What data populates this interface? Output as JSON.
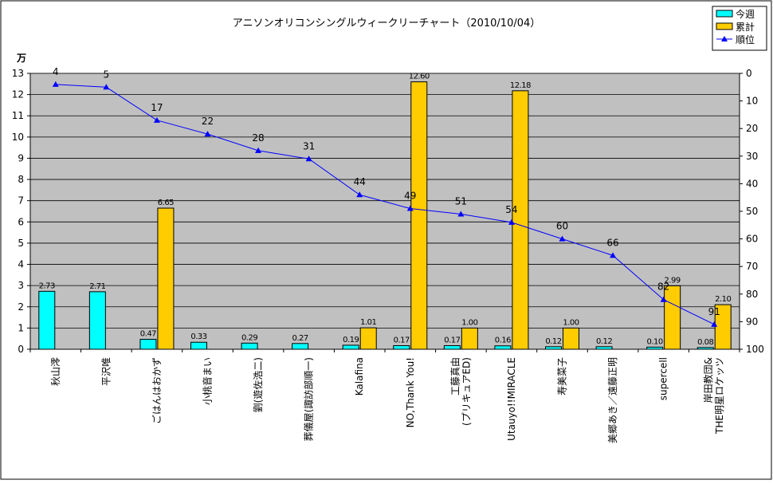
{
  "chart_data": {
    "type": "bar",
    "title": "アニソンオリコンシングルウィークリーチャート（2010/10/04）",
    "y_unit_label": "万",
    "categories": [
      "秋山澪",
      "平沢唯",
      "ごはんはおかず",
      "小桃音まい",
      "劉(遊佐浩二)",
      "葬儀屋(諏訪部順一)",
      "Kalafina",
      "NO,Thank You!",
      "工藤真由(プリキュアED)",
      "Utauyo!!MIRACLE",
      "寿美菜子",
      "美郷あき／遠藤正明",
      "supercell",
      "岸田教団&THE明星ロケッツ"
    ],
    "category_labels": [
      [
        "秋山澪"
      ],
      [
        "平沢唯"
      ],
      [
        "ごはんはおかず"
      ],
      [
        "小桃音まい"
      ],
      [
        "劉(遊佐浩二)"
      ],
      [
        "葬儀屋(諏訪部順一)"
      ],
      [
        "Kalafina"
      ],
      [
        "NO,Thank You!"
      ],
      [
        "工藤真由",
        "(プリキュアED)"
      ],
      [
        "Utauyo!!MIRACLE"
      ],
      [
        "寿美菜子"
      ],
      [
        "美郷あき／遠藤正明"
      ],
      [
        "supercell"
      ],
      [
        "岸田教団&",
        "THE明星ロケッツ"
      ]
    ],
    "series": [
      {
        "name": "今週",
        "type": "bar",
        "axis": "left",
        "color": "#00FFFF",
        "values": [
          2.73,
          2.71,
          0.47,
          0.33,
          0.29,
          0.27,
          0.19,
          0.17,
          0.17,
          0.16,
          0.12,
          0.12,
          0.1,
          0.08
        ],
        "labels": [
          "2.73",
          "2.71",
          "0.47",
          "0.33",
          "0.29",
          "0.27",
          "0.19",
          "0.17",
          "0.17",
          "0.16",
          "0.12",
          "0.12",
          "0.10",
          "0.08"
        ]
      },
      {
        "name": "累計",
        "type": "bar",
        "axis": "left",
        "color": "#FFCC00",
        "values": [
          null,
          null,
          6.65,
          null,
          null,
          null,
          1.01,
          12.6,
          1.0,
          12.18,
          1.0,
          null,
          2.99,
          2.1
        ],
        "labels": [
          "",
          "",
          "6.65",
          "",
          "",
          "",
          "1.01",
          "12.60",
          "1.00",
          "12.18",
          "1.00",
          "",
          "2.99",
          "2.10"
        ]
      },
      {
        "name": "順位",
        "type": "line",
        "axis": "right",
        "color": "#0000FF",
        "values": [
          4,
          5,
          17,
          22,
          28,
          31,
          44,
          49,
          51,
          54,
          60,
          66,
          82,
          91
        ]
      }
    ],
    "y_left": {
      "min": 0,
      "max": 13,
      "ticks": [
        0,
        1,
        2,
        3,
        4,
        5,
        6,
        7,
        8,
        9,
        10,
        11,
        12,
        13
      ]
    },
    "y_right": {
      "min": 0,
      "max": 100,
      "inverted": true,
      "ticks": [
        0,
        10,
        20,
        30,
        40,
        50,
        60,
        70,
        80,
        90,
        100
      ]
    },
    "grid": true,
    "legend_position": "top-right",
    "colors": {
      "plot_bg": "#C0C0C0",
      "outer_bg": "#ffffff",
      "frame": "#000000"
    }
  }
}
